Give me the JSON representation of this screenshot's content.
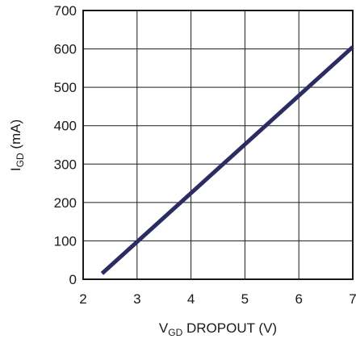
{
  "chart_data": {
    "type": "line",
    "title": "",
    "xlabel_main": "V",
    "xlabel_sub": "GD",
    "xlabel_rest": " DROPOUT (V)",
    "ylabel_main": "I",
    "ylabel_sub": "GD",
    "ylabel_rest": " (mA)",
    "xlim": [
      2,
      7
    ],
    "ylim": [
      0,
      700
    ],
    "xticks": [
      "2",
      "3",
      "4",
      "5",
      "6",
      "7"
    ],
    "yticks": [
      "0",
      "100",
      "200",
      "300",
      "400",
      "500",
      "600",
      "700"
    ],
    "grid": true,
    "line_color": "#2b2d62",
    "series": [
      {
        "x": [
          2.35,
          7.0
        ],
        "y": [
          15,
          605
        ]
      }
    ]
  }
}
